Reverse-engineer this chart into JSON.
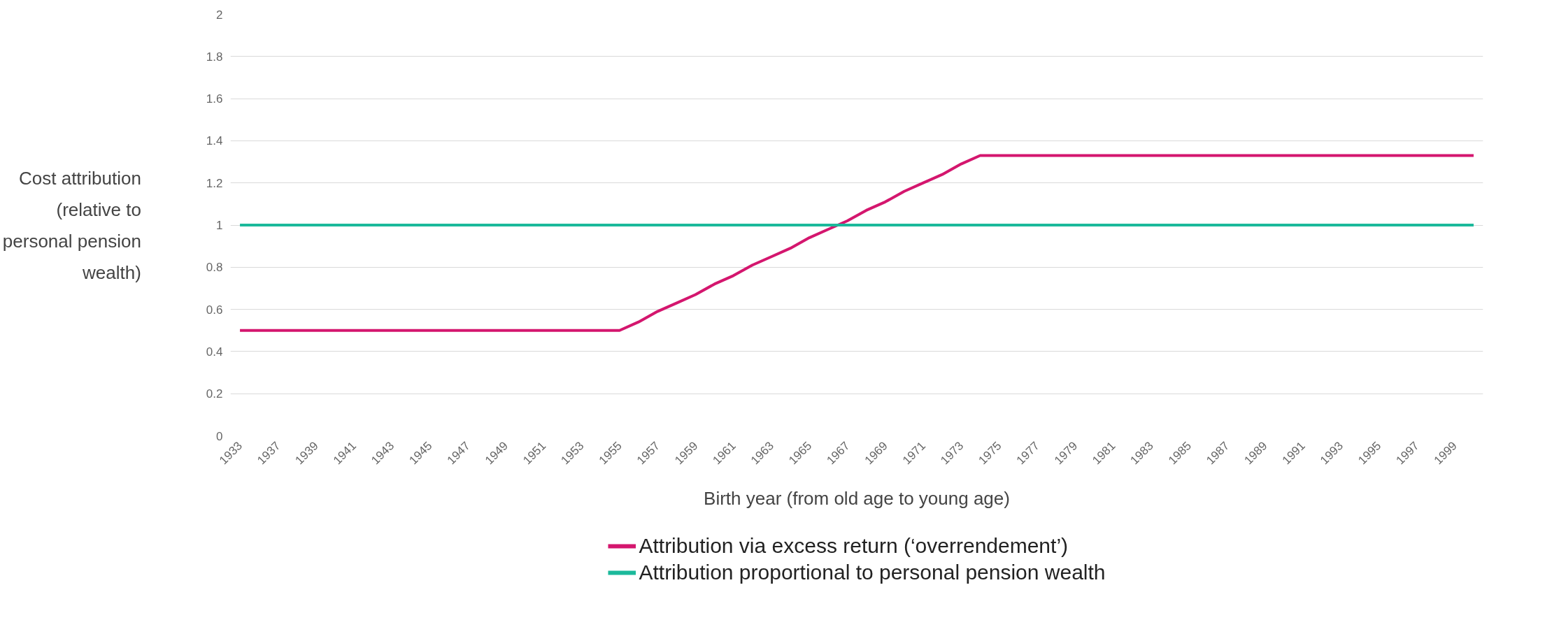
{
  "chart_data": {
    "type": "line",
    "xlabel": "Birth year (from old age to young age)",
    "ylabel": "Cost attribution\n(relative to\npersonal pension\nwealth)",
    "categories": [
      "1933",
      null,
      "1937",
      null,
      "1939",
      null,
      "1941",
      null,
      "1943",
      null,
      "1945",
      null,
      "1947",
      null,
      "1949",
      null,
      "1951",
      null,
      "1953",
      null,
      "1955",
      null,
      "1957",
      null,
      "1959",
      null,
      "1961",
      null,
      "1963",
      null,
      "1965",
      null,
      "1967",
      null,
      "1969",
      null,
      "1971",
      null,
      "1973",
      null,
      "1975",
      null,
      "1977",
      null,
      "1979",
      null,
      "1981",
      null,
      "1983",
      null,
      "1985",
      null,
      "1987",
      null,
      "1989",
      null,
      "1991",
      null,
      "1993",
      null,
      "1995",
      null,
      "1997",
      null,
      "1999",
      null
    ],
    "series": [
      {
        "name": "Attribution via excess return (‘overrendement’)",
        "color": "#d4166e",
        "values": [
          0.5,
          0.5,
          0.5,
          0.5,
          0.5,
          0.5,
          0.5,
          0.5,
          0.5,
          0.5,
          0.5,
          0.5,
          0.5,
          0.5,
          0.5,
          0.5,
          0.5,
          0.5,
          0.5,
          0.5,
          0.5,
          0.54,
          0.59,
          0.63,
          0.67,
          0.72,
          0.76,
          0.81,
          0.85,
          0.89,
          0.94,
          0.98,
          1.02,
          1.07,
          1.11,
          1.16,
          1.2,
          1.24,
          1.29,
          1.33,
          1.33,
          1.33,
          1.33,
          1.33,
          1.33,
          1.33,
          1.33,
          1.33,
          1.33,
          1.33,
          1.33,
          1.33,
          1.33,
          1.33,
          1.33,
          1.33,
          1.33,
          1.33,
          1.33,
          1.33,
          1.33,
          1.33,
          1.33,
          1.33,
          1.33,
          1.33
        ]
      },
      {
        "name": "Attribution proportional to personal pension wealth",
        "color": "#1cb99b",
        "values": [
          1,
          1,
          1,
          1,
          1,
          1,
          1,
          1,
          1,
          1,
          1,
          1,
          1,
          1,
          1,
          1,
          1,
          1,
          1,
          1,
          1,
          1,
          1,
          1,
          1,
          1,
          1,
          1,
          1,
          1,
          1,
          1,
          1,
          1,
          1,
          1,
          1,
          1,
          1,
          1,
          1,
          1,
          1,
          1,
          1,
          1,
          1,
          1,
          1,
          1,
          1,
          1,
          1,
          1,
          1,
          1,
          1,
          1,
          1,
          1,
          1,
          1,
          1,
          1,
          1,
          1
        ]
      }
    ],
    "ylim": [
      0,
      2
    ],
    "yticks": [
      0,
      0.2,
      0.4,
      0.6,
      0.8,
      1,
      1.2,
      1.4,
      1.6,
      1.8,
      2
    ],
    "grid": "y",
    "legend": "bottom",
    "marker": "none",
    "line_style": "solid"
  }
}
